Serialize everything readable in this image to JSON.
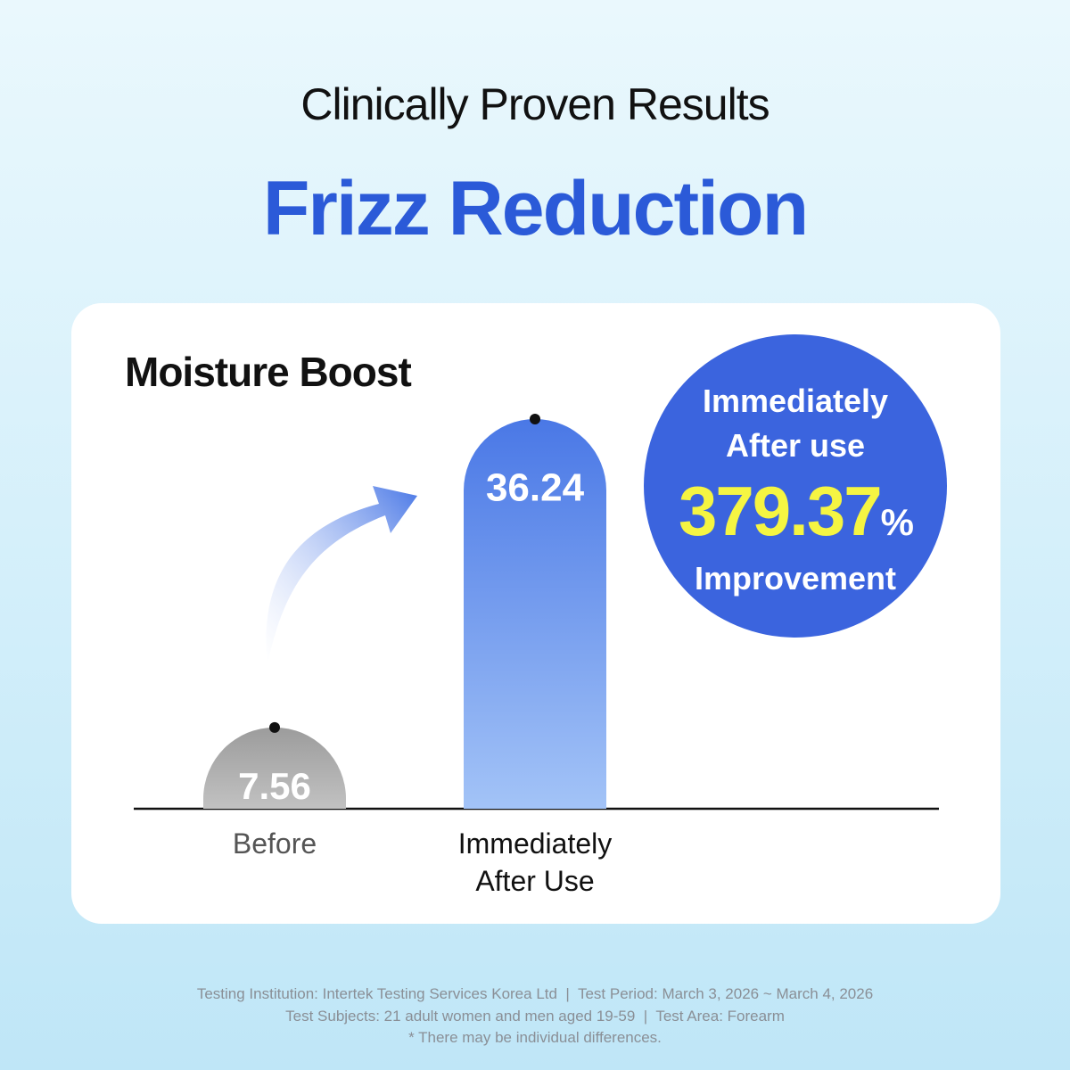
{
  "header": {
    "subtitle": "Clinically Proven Results",
    "title": "Frizz Reduction"
  },
  "chart_data": {
    "type": "bar",
    "title": "Moisture Boost",
    "categories": [
      "Before",
      "Immediately After Use"
    ],
    "values": [
      7.56,
      36.24
    ],
    "colors": [
      "#a3a3a3",
      "#4a78e6"
    ]
  },
  "badge": {
    "label": "Immediately After use",
    "value": "379.37",
    "unit": "%",
    "caption": "Improvement"
  },
  "footer": [
    "Testing Institution: Intertek Testing Services Korea Ltd  |  Test Period: March 3, 2026 ~ March 4, 2026",
    "Test Subjects: 21 adult women and men aged 19-59  |  Test Area: Forearm",
    "* There may be individual differences."
  ]
}
